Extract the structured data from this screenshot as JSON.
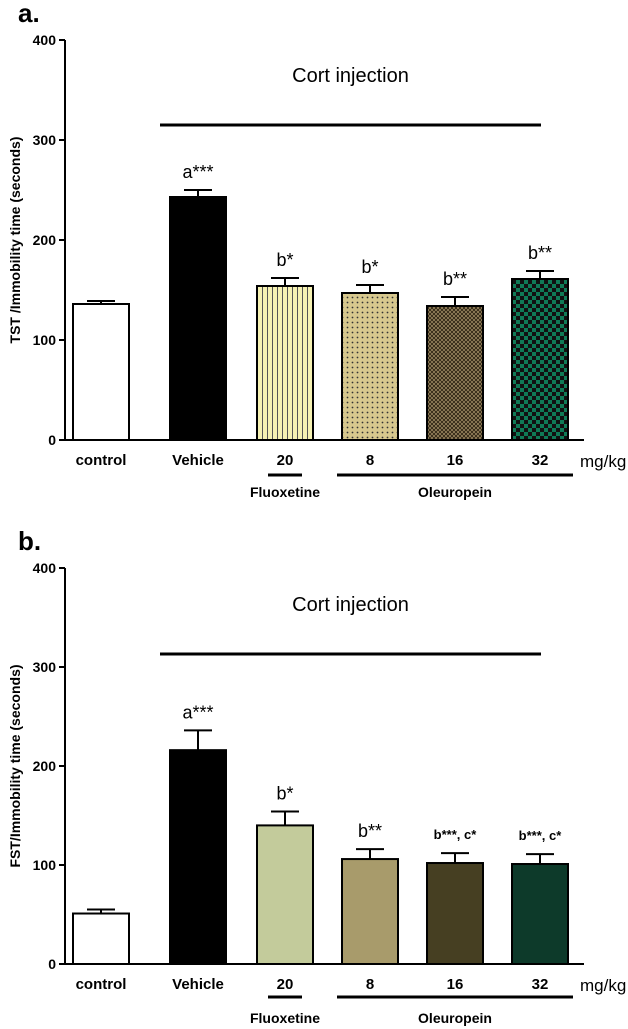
{
  "chart_data": [
    {
      "type": "bar",
      "panel_label": "a.",
      "ylabel": "TST /Immobility time (seconds)",
      "ylim": [
        0,
        400
      ],
      "yticks": [
        0,
        100,
        200,
        300,
        400
      ],
      "categories": [
        "control",
        "Vehicle",
        "20",
        "8",
        "16",
        "32"
      ],
      "unit_label": "mg/kg",
      "values": [
        136,
        243,
        154,
        147,
        134,
        161
      ],
      "errors": [
        3,
        7,
        8,
        8,
        9,
        8
      ],
      "annotations": [
        "",
        "a***",
        "b*",
        "b*",
        "b**",
        "b**"
      ],
      "fills": [
        "#ffffff",
        "#000000",
        "#f6f2b3",
        "#d7c88e",
        "#9a8760",
        "#0f7a56"
      ],
      "patterns": [
        "none",
        "none",
        "vlines",
        "dots",
        "crosshatch",
        "checker"
      ],
      "cort_label": "Cort injection",
      "groups": [
        {
          "label": "Fluoxetine",
          "from": 2,
          "to": 2
        },
        {
          "label": "Oleuropein",
          "from": 3,
          "to": 5
        }
      ]
    },
    {
      "type": "bar",
      "panel_label": "b.",
      "ylabel": "FST/Immobility time (seconds)",
      "ylim": [
        0,
        400
      ],
      "yticks": [
        0,
        100,
        200,
        300,
        400
      ],
      "categories": [
        "control",
        "Vehicle",
        "20",
        "8",
        "16",
        "32"
      ],
      "unit_label": "mg/kg",
      "values": [
        51,
        216,
        140,
        106,
        102,
        101
      ],
      "errors": [
        4,
        20,
        14,
        10,
        10,
        10
      ],
      "annotations": [
        "",
        "a***",
        "b*",
        "b**",
        "b***, c*",
        "b***, c*"
      ],
      "fills": [
        "#ffffff",
        "#000000",
        "#c3cb9b",
        "#a89b6b",
        "#463f22",
        "#0d3a2a"
      ],
      "patterns": [
        "none",
        "none",
        "none",
        "none",
        "none",
        "none"
      ],
      "cort_label": "Cort injection",
      "groups": [
        {
          "label": "Fluoxetine",
          "from": 2,
          "to": 2
        },
        {
          "label": "Oleuropein",
          "from": 3,
          "to": 5
        }
      ]
    }
  ]
}
